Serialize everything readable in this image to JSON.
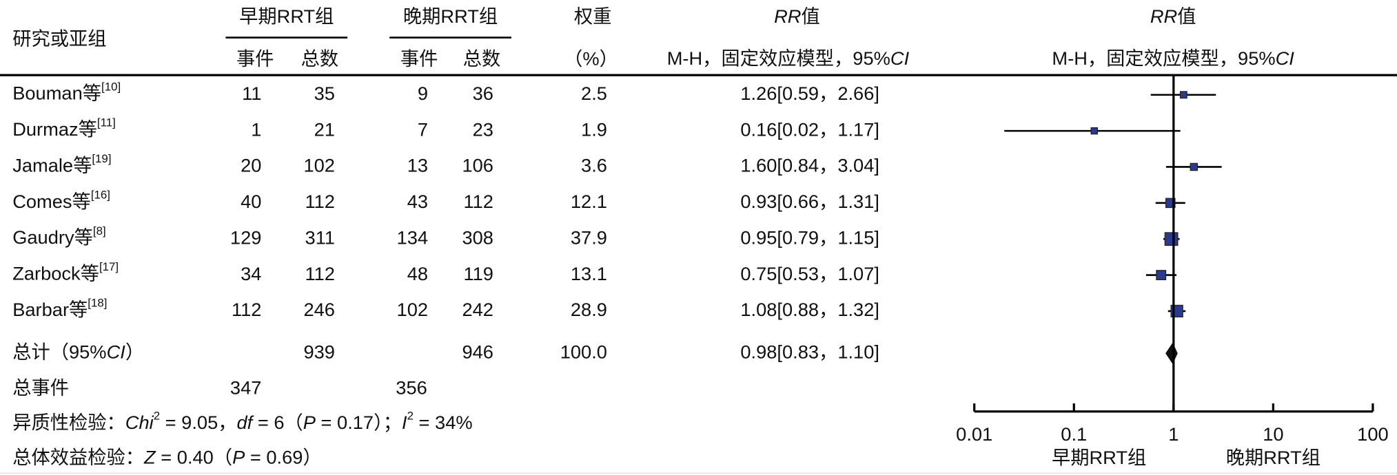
{
  "header": {
    "study": "研究或亚组",
    "early_group": "早期RRT组",
    "late_group": "晚期RRT组",
    "events": "事件",
    "total": "总数",
    "weight": "权重",
    "weight_unit": "（%）",
    "rr": [
      "RR",
      "值"
    ],
    "method": [
      "M-H，固定效应模型，95%",
      "CI"
    ]
  },
  "chart_data": {
    "type": "forest",
    "studies": [
      {
        "name": "Bouman等",
        "ref": "[10]",
        "early_events": 11,
        "early_total": 35,
        "late_events": 9,
        "late_total": 36,
        "weight": 2.5,
        "rr": 1.26,
        "ci_low": 0.59,
        "ci_high": 2.66,
        "rr_label": "1.26[0.59，2.66]"
      },
      {
        "name": "Durmaz等",
        "ref": "[11]",
        "early_events": 1,
        "early_total": 21,
        "late_events": 7,
        "late_total": 23,
        "weight": 1.9,
        "rr": 0.16,
        "ci_low": 0.02,
        "ci_high": 1.17,
        "rr_label": "0.16[0.02，1.17]"
      },
      {
        "name": "Jamale等",
        "ref": "[19]",
        "early_events": 20,
        "early_total": 102,
        "late_events": 13,
        "late_total": 106,
        "weight": 3.6,
        "rr": 1.6,
        "ci_low": 0.84,
        "ci_high": 3.04,
        "rr_label": "1.60[0.84，3.04]"
      },
      {
        "name": "Comes等",
        "ref": "[16]",
        "early_events": 40,
        "early_total": 112,
        "late_events": 43,
        "late_total": 112,
        "weight": 12.1,
        "rr": 0.93,
        "ci_low": 0.66,
        "ci_high": 1.31,
        "rr_label": "0.93[0.66，1.31]"
      },
      {
        "name": "Gaudry等",
        "ref": "[8]",
        "early_events": 129,
        "early_total": 311,
        "late_events": 134,
        "late_total": 308,
        "weight": 37.9,
        "rr": 0.95,
        "ci_low": 0.79,
        "ci_high": 1.15,
        "rr_label": "0.95[0.79，1.15]"
      },
      {
        "name": "Zarbock等",
        "ref": "[17]",
        "early_events": 34,
        "early_total": 112,
        "late_events": 48,
        "late_total": 119,
        "weight": 13.1,
        "rr": 0.75,
        "ci_low": 0.53,
        "ci_high": 1.07,
        "rr_label": "0.75[0.53，1.07]"
      },
      {
        "name": "Barbar等",
        "ref": "[18]",
        "early_events": 112,
        "early_total": 246,
        "late_events": 102,
        "late_total": 242,
        "weight": 28.9,
        "rr": 1.08,
        "ci_low": 0.88,
        "ci_high": 1.32,
        "rr_label": "1.08[0.88，1.32]"
      }
    ],
    "total": {
      "label": [
        "总计（95%",
        "CI",
        "）"
      ],
      "early_total": 939,
      "late_total": 946,
      "weight": {
        "value": 100,
        "label": "100.0"
      },
      "rr": 0.98,
      "ci_low": 0.83,
      "ci_high": 1.1,
      "rr_label": "0.98[0.83，1.10]"
    },
    "total_events": {
      "label": "总事件",
      "early_events": 347,
      "late_events": 356
    },
    "heterogeneity": [
      "异质性检验：",
      "Chi",
      "2",
      " = 9.05，",
      "df",
      " = 6（",
      "P",
      " = 0.17）；",
      "I",
      "2",
      " = 34%"
    ],
    "overall_effect": [
      "总体效益检验：",
      "Z",
      " = 0.40（",
      "P",
      " = 0.69）"
    ],
    "xlim": [
      0.01,
      100
    ],
    "xticks": [
      0.01,
      0.1,
      1,
      10,
      100
    ],
    "log_x": true,
    "x_labels": [
      "早期RRT组",
      "晚期RRT组"
    ],
    "colors": {
      "square": "#2b3a8c",
      "line": "#000000",
      "diamond": "#111111"
    }
  }
}
